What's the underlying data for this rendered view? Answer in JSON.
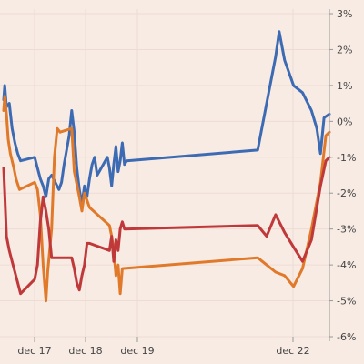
{
  "chart_data": {
    "type": "line",
    "title": "",
    "xlabel": "",
    "ylabel": "",
    "ylim": [
      -6,
      3
    ],
    "y_ticks": [
      3,
      2,
      1,
      0,
      -1,
      -2,
      -3,
      -4,
      -5,
      -6
    ],
    "y_tick_labels": [
      "3%",
      "2%",
      "1%",
      "0%",
      "-1%",
      "-2%",
      "-3%",
      "-4%",
      "-5%",
      "-6%"
    ],
    "x_tick_labels": [
      "dec 17",
      "dec 18",
      "dec 19",
      "dec 22"
    ],
    "grid": true,
    "legend": "none",
    "series": [
      {
        "color": "#3d6bb3",
        "points": [
          [
            0.0,
            0.6
          ],
          [
            0.02,
            1.0
          ],
          [
            0.05,
            0.4
          ],
          [
            0.1,
            0.5
          ],
          [
            0.15,
            -0.2
          ],
          [
            0.2,
            -0.6
          ],
          [
            0.25,
            -0.9
          ],
          [
            0.3,
            -1.1
          ],
          [
            0.55,
            -1.0
          ],
          [
            0.6,
            -1.3
          ],
          [
            0.65,
            -1.6
          ],
          [
            0.7,
            -1.8
          ],
          [
            0.75,
            -2.1
          ],
          [
            0.8,
            -1.6
          ],
          [
            0.85,
            -1.5
          ],
          [
            1.05,
            -1.9
          ],
          [
            1.1,
            -1.7
          ],
          [
            1.15,
            -1.2
          ],
          [
            1.25,
            -0.4
          ],
          [
            1.3,
            0.3
          ],
          [
            1.35,
            -0.3
          ],
          [
            1.4,
            -1.3
          ],
          [
            1.45,
            -1.9
          ],
          [
            1.5,
            -2.3
          ],
          [
            1.55,
            -1.8
          ],
          [
            1.6,
            -2.1
          ],
          [
            1.65,
            -1.6
          ],
          [
            1.7,
            -1.2
          ],
          [
            1.75,
            -1.0
          ],
          [
            1.8,
            -1.5
          ],
          [
            2.0,
            -1.0
          ],
          [
            2.05,
            -1.3
          ],
          [
            2.1,
            -1.8
          ],
          [
            2.15,
            -1.2
          ],
          [
            2.2,
            -0.7
          ],
          [
            2.25,
            -1.4
          ],
          [
            2.3,
            -1.1
          ],
          [
            2.35,
            -0.6
          ],
          [
            2.4,
            -1.2
          ],
          [
            2.45,
            -1.1
          ],
          [
            3.6,
            -0.8
          ],
          [
            3.65,
            0.5
          ],
          [
            3.7,
            1.8
          ],
          [
            3.72,
            2.5
          ],
          [
            3.75,
            1.7
          ],
          [
            3.8,
            1.0
          ],
          [
            3.85,
            0.8
          ],
          [
            3.9,
            0.3
          ],
          [
            3.93,
            -0.2
          ],
          [
            3.95,
            -0.9
          ],
          [
            3.97,
            0.1
          ],
          [
            4.0,
            0.2
          ]
        ]
      },
      {
        "color": "#e07a2a",
        "points": [
          [
            0.0,
            0.3
          ],
          [
            0.02,
            0.7
          ],
          [
            0.05,
            0.2
          ],
          [
            0.08,
            -0.5
          ],
          [
            0.12,
            -0.9
          ],
          [
            0.18,
            -1.3
          ],
          [
            0.22,
            -1.6
          ],
          [
            0.28,
            -1.9
          ],
          [
            0.55,
            -1.7
          ],
          [
            0.6,
            -1.9
          ],
          [
            0.65,
            -2.6
          ],
          [
            0.7,
            -4.0
          ],
          [
            0.75,
            -5.0
          ],
          [
            0.78,
            -4.2
          ],
          [
            0.85,
            -3.0
          ],
          [
            0.9,
            -1.0
          ],
          [
            0.95,
            -0.2
          ],
          [
            1.0,
            -0.3
          ],
          [
            1.3,
            -0.2
          ],
          [
            1.35,
            -1.4
          ],
          [
            1.45,
            -2.1
          ],
          [
            1.5,
            -2.5
          ],
          [
            1.55,
            -2.0
          ],
          [
            1.6,
            -2.2
          ],
          [
            1.65,
            -2.4
          ],
          [
            2.05,
            -2.9
          ],
          [
            2.1,
            -3.2
          ],
          [
            2.15,
            -3.6
          ],
          [
            2.2,
            -4.3
          ],
          [
            2.25,
            -4.0
          ],
          [
            2.3,
            -4.8
          ],
          [
            2.35,
            -4.1
          ],
          [
            3.6,
            -3.8
          ],
          [
            3.65,
            -4.0
          ],
          [
            3.7,
            -4.2
          ],
          [
            3.75,
            -4.3
          ],
          [
            3.8,
            -4.6
          ],
          [
            3.85,
            -4.1
          ],
          [
            3.9,
            -3.0
          ],
          [
            3.95,
            -1.7
          ],
          [
            3.98,
            -0.4
          ],
          [
            4.0,
            -0.3
          ]
        ]
      },
      {
        "color": "#c0393a",
        "points": [
          [
            0.0,
            -1.3
          ],
          [
            0.02,
            -2.0
          ],
          [
            0.05,
            -3.2
          ],
          [
            0.1,
            -3.6
          ],
          [
            0.15,
            -3.9
          ],
          [
            0.2,
            -4.2
          ],
          [
            0.25,
            -4.5
          ],
          [
            0.3,
            -4.8
          ],
          [
            0.55,
            -4.4
          ],
          [
            0.6,
            -4.0
          ],
          [
            0.65,
            -2.8
          ],
          [
            0.7,
            -2.1
          ],
          [
            0.75,
            -2.5
          ],
          [
            0.8,
            -3.0
          ],
          [
            0.85,
            -3.8
          ],
          [
            1.3,
            -3.8
          ],
          [
            1.35,
            -4.1
          ],
          [
            1.4,
            -4.5
          ],
          [
            1.45,
            -4.7
          ],
          [
            1.5,
            -4.3
          ],
          [
            1.55,
            -4.0
          ],
          [
            1.6,
            -3.4
          ],
          [
            1.65,
            -3.4
          ],
          [
            2.05,
            -3.6
          ],
          [
            2.1,
            -3.2
          ],
          [
            2.15,
            -3.9
          ],
          [
            2.2,
            -3.3
          ],
          [
            2.25,
            -3.6
          ],
          [
            2.3,
            -3.0
          ],
          [
            2.35,
            -2.8
          ],
          [
            2.4,
            -3.0
          ],
          [
            3.6,
            -2.9
          ],
          [
            3.65,
            -3.2
          ],
          [
            3.7,
            -2.6
          ],
          [
            3.75,
            -3.1
          ],
          [
            3.8,
            -3.5
          ],
          [
            3.85,
            -3.9
          ],
          [
            3.9,
            -3.3
          ],
          [
            3.95,
            -1.8
          ],
          [
            3.98,
            -1.1
          ],
          [
            4.0,
            -1.0
          ]
        ]
      }
    ]
  }
}
